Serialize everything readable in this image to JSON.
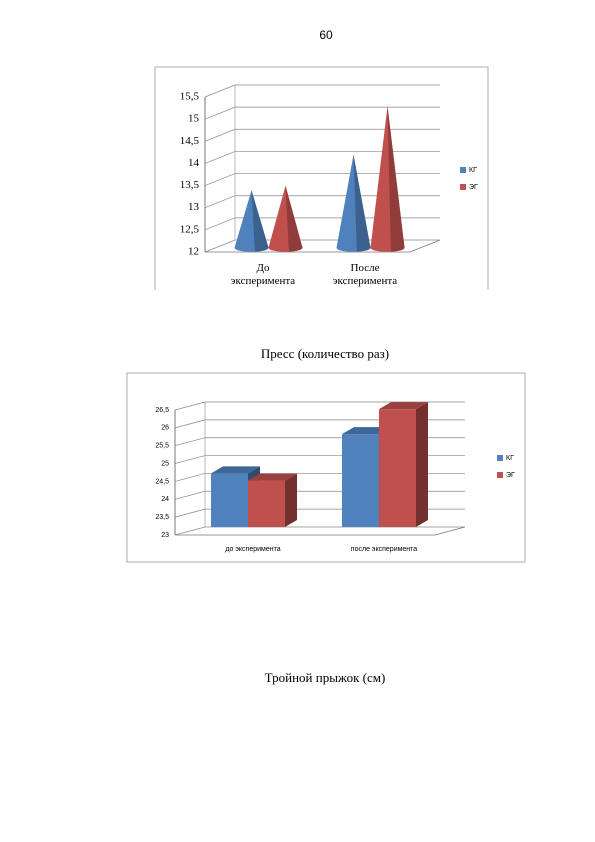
{
  "page_number": "60",
  "chart_data": [
    {
      "type": "cone",
      "categories": [
        "До эксперимента",
        "После эксперимента"
      ],
      "series": [
        {
          "name": "КГ",
          "color": "#4f81bd",
          "values": [
            13.3,
            14.1
          ]
        },
        {
          "name": "ЭГ",
          "color": "#c0504d",
          "values": [
            13.4,
            15.2
          ]
        }
      ],
      "ylim": [
        12,
        15.5
      ],
      "yticks": [
        12,
        {
          "value": 12.5,
          "label": "12,5"
        },
        13,
        {
          "value": 13.5,
          "label": "13,5"
        },
        14,
        {
          "value": 14.5,
          "label": "14,5"
        },
        15,
        {
          "value": 15.5,
          "label": "15,5"
        }
      ],
      "grid": true,
      "legend": "right"
    },
    {
      "type": "bar3d",
      "categories": [
        "до эксперимента",
        "после эксперимента"
      ],
      "series": [
        {
          "name": "КГ",
          "color": "#4f81bd",
          "values": [
            24.5,
            25.6
          ]
        },
        {
          "name": "ЭГ",
          "color": "#c0504d",
          "values": [
            24.3,
            26.3
          ]
        }
      ],
      "ylim": [
        23,
        26.5
      ],
      "yticks": [
        23,
        {
          "value": 23.5,
          "label": "23,5"
        },
        24,
        {
          "value": 24.5,
          "label": "24,5"
        },
        25,
        {
          "value": 25.5,
          "label": "25,5"
        },
        26,
        {
          "value": 26.5,
          "label": "26,5"
        }
      ],
      "grid": true,
      "legend": "right"
    }
  ],
  "captions": [
    "Пресс (количество раз)",
    "Тройной прыжок (см)"
  ]
}
